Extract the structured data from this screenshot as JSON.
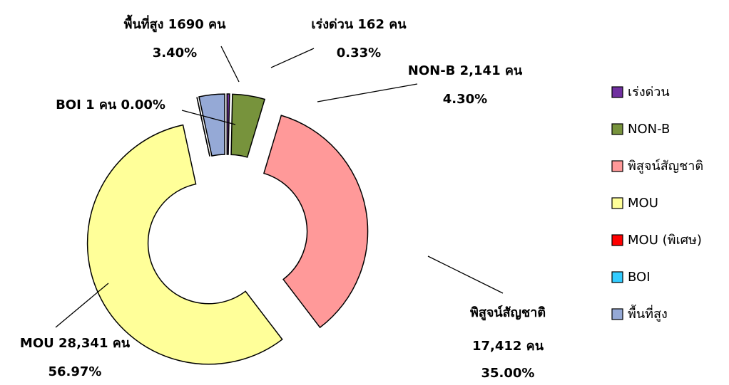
{
  "chart_data": {
    "type": "donut",
    "categories": [
      "เร่งด่วน",
      "NON-B",
      "พิสูจน์สัญชาติ",
      "MOU",
      "MOU (พิเศษ)",
      "BOI",
      "พื้นที่สูง"
    ],
    "values": [
      162,
      2141,
      17412,
      28341,
      0,
      1,
      1690
    ],
    "value_labels": [
      "162 คน",
      "2,141 คน",
      "17,412 คน",
      "28,341 คน",
      null,
      "1 คน",
      "1690 คน"
    ],
    "percentages": [
      0.33,
      4.3,
      35.0,
      56.97,
      0,
      0.0,
      3.4
    ],
    "percentage_labels": [
      "0.33%",
      "4.30%",
      "35.00%",
      "56.97%",
      null,
      "0.00%",
      "3.40%"
    ],
    "colors": [
      "#7030a0",
      "#77933c",
      "#ff9999",
      "#ffff99",
      "#ff0000",
      "#33ccff",
      "#95a9d6"
    ],
    "legend": "right"
  }
}
